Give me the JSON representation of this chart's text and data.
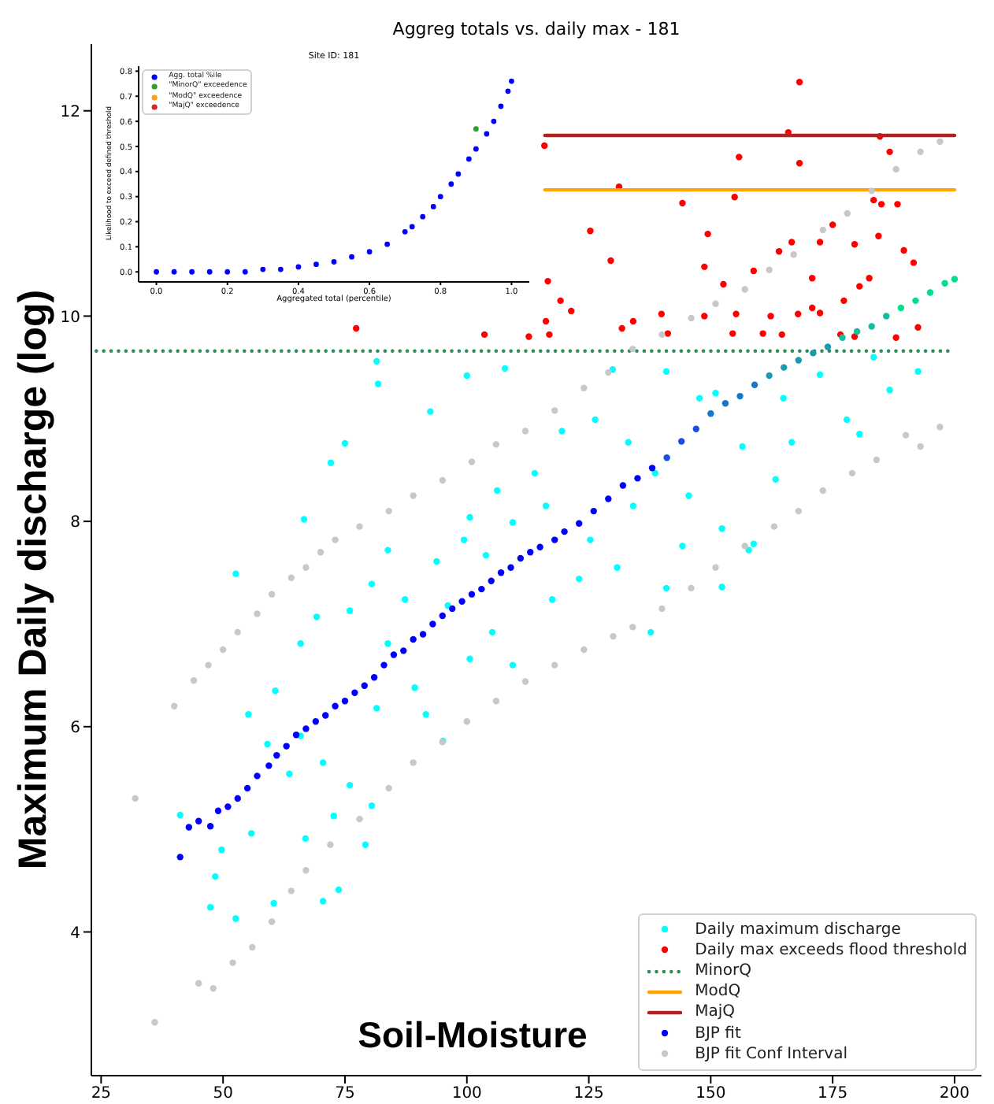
{
  "chart_data": [
    {
      "type": "scatter",
      "title": "Aggreg totals vs. daily max - 181",
      "xlabel": "Soil-Moisture",
      "ylabel": "Maximum Daily discharge (log)",
      "xlim": [
        23,
        205.5
      ],
      "ylim": [
        2.6,
        12.65
      ],
      "xticks": [
        25,
        50,
        75,
        100,
        125,
        150,
        175,
        200
      ],
      "yticks": [
        4,
        6,
        8,
        10,
        12
      ],
      "legend": "bottom right",
      "marker": "circle",
      "series": [
        {
          "name": "Daily maximum discharge",
          "color": "#00ffff",
          "x": [
            81.5,
            81.8,
            100,
            107.8,
            92.5,
            75,
            72.1,
            66.6,
            129.9,
            140.9,
            147.7,
            183.4,
            192.5,
            186.7,
            164.9,
            172.4,
            177.9,
            180.5,
            166.6,
            163.3,
            156.5,
            151,
            126.3,
            119.5,
            133.1,
            138.6,
            145.5,
            152.3,
            158.8,
            113.9,
            106.2,
            100.6,
            109.4,
            116.2,
            125.3,
            134.1,
            99.4,
            93.8,
            83.8,
            103.9,
            52.6,
            69.2,
            65.9,
            60.7,
            55.2,
            59.1,
            63.6,
            55.8,
            49.7,
            48.4,
            47.4,
            41.2,
            52.6,
            60.4,
            70.5,
            73.7,
            66.9,
            72.7,
            80.5,
            76,
            70.5,
            65.9,
            81.5,
            89.3,
            95.1,
            100.6,
            83.8,
            76,
            80.5,
            96.1,
            105.2,
            109.4,
            117.5,
            123,
            130.8,
            137.7,
            140.9,
            152.3,
            144.2,
            157.8,
            87.3,
            91.6,
            79.2
          ],
          "values": [
            9.56,
            9.34,
            9.42,
            9.49,
            9.07,
            8.76,
            8.57,
            8.02,
            9.48,
            9.46,
            9.2,
            9.6,
            9.46,
            9.28,
            9.2,
            9.43,
            8.99,
            8.85,
            8.77,
            8.41,
            8.73,
            9.25,
            8.99,
            8.88,
            8.77,
            8.47,
            8.25,
            7.93,
            7.78,
            8.47,
            8.3,
            8.04,
            7.99,
            8.15,
            7.82,
            8.15,
            7.82,
            7.61,
            7.72,
            7.67,
            7.49,
            7.07,
            6.81,
            6.35,
            6.12,
            5.83,
            5.54,
            4.96,
            4.8,
            4.54,
            4.24,
            5.14,
            4.13,
            4.28,
            4.3,
            4.41,
            4.91,
            5.13,
            5.23,
            5.43,
            5.65,
            5.91,
            6.18,
            6.38,
            5.86,
            6.66,
            6.81,
            7.13,
            7.39,
            7.18,
            6.92,
            6.6,
            7.24,
            7.44,
            7.55,
            6.92,
            7.35,
            7.36,
            7.76,
            7.72,
            7.24,
            6.12,
            4.85
          ]
        },
        {
          "name": "Daily max exceeds flood threshold",
          "color": "#ff0000",
          "x": [
            115.9,
            165.9,
            184.7,
            155.8,
            168.2,
            186.7,
            131.2,
            154.9,
            144.2,
            183.4,
            185,
            188.3,
            125.3,
            149.4,
            175,
            129.5,
            148.7,
            158.8,
            164,
            166.6,
            172.4,
            179.5,
            184.4,
            189.6,
            191.6,
            170.8,
            182.5,
            116.6,
            152.6,
            119.2,
            121.4,
            139.9,
            148.7,
            155.2,
            162.3,
            167.9,
            172.4,
            116.2,
            134.1,
            131.8,
            77.3,
            103.6,
            112.7,
            116.9,
            141.2,
            154.5,
            160.7,
            164.6,
            176.6,
            179.5,
            188,
            192.5,
            170.8,
            177.3,
            180.5,
            168.2
          ],
          "values": [
            11.66,
            11.79,
            11.75,
            11.55,
            11.49,
            11.6,
            11.26,
            11.16,
            11.1,
            11.13,
            11.09,
            11.09,
            10.83,
            10.8,
            10.89,
            10.54,
            10.48,
            10.44,
            10.63,
            10.72,
            10.72,
            10.7,
            10.78,
            10.64,
            10.52,
            10.37,
            10.37,
            10.34,
            10.31,
            10.15,
            10.05,
            10.02,
            10.0,
            10.02,
            10.0,
            10.02,
            10.03,
            9.95,
            9.95,
            9.88,
            9.88,
            9.82,
            9.8,
            9.82,
            9.83,
            9.83,
            9.83,
            9.82,
            9.82,
            9.8,
            9.79,
            9.89,
            10.08,
            10.15,
            10.29,
            12.28
          ]
        },
        {
          "name": "MinorQ",
          "type": "line",
          "line_style": "dotted",
          "marker": "none",
          "color": "#2e8b57",
          "x": [
            24,
            200
          ],
          "values": [
            9.66,
            9.66
          ]
        },
        {
          "name": "ModQ",
          "type": "line",
          "line_style": "solid",
          "marker": "none",
          "color": "#ffa500",
          "x": [
            116,
            200
          ],
          "values": [
            11.23,
            11.23
          ]
        },
        {
          "name": "MajQ",
          "type": "line",
          "line_style": "solid",
          "marker": "none",
          "color": "#b22222",
          "x": [
            116,
            200
          ],
          "values": [
            11.76,
            11.76
          ]
        },
        {
          "name": "BJP fit",
          "color": "#0000ff",
          "x": [
            41.2,
            43,
            45,
            47.4,
            49,
            51,
            53,
            55,
            57,
            59.4,
            61,
            63,
            65,
            67,
            69,
            71,
            73,
            75,
            77,
            79,
            81,
            83,
            85,
            87,
            89,
            91,
            93,
            95,
            97,
            99,
            101,
            103,
            105,
            107,
            109,
            111,
            113,
            115,
            118,
            120,
            123,
            126,
            129,
            132,
            135,
            138,
            141,
            144,
            147,
            150,
            153,
            156,
            159,
            162,
            165,
            168,
            171,
            174,
            177,
            180,
            183,
            186,
            189,
            192,
            195,
            198,
            200
          ],
          "values": [
            4.73,
            5.02,
            5.08,
            5.03,
            5.18,
            5.22,
            5.3,
            5.4,
            5.52,
            5.62,
            5.72,
            5.81,
            5.92,
            5.98,
            6.05,
            6.11,
            6.2,
            6.25,
            6.33,
            6.4,
            6.48,
            6.6,
            6.7,
            6.74,
            6.85,
            6.9,
            7.0,
            7.08,
            7.15,
            7.22,
            7.29,
            7.34,
            7.42,
            7.5,
            7.55,
            7.64,
            7.7,
            7.75,
            7.82,
            7.9,
            7.98,
            8.1,
            8.22,
            8.35,
            8.42,
            8.52,
            8.62,
            8.78,
            8.9,
            9.05,
            9.15,
            9.22,
            9.33,
            9.42,
            9.5,
            9.57,
            9.64,
            9.7,
            9.79,
            9.85,
            9.9,
            10.0,
            10.08,
            10.15,
            10.23,
            10.32,
            10.36
          ],
          "colors": [
            "#0000ff",
            "#0000ff",
            "#0000ff",
            "#0000ff",
            "#0000ff",
            "#0000ff",
            "#0000ff",
            "#0000ff",
            "#0000ff",
            "#0000ff",
            "#0000ff",
            "#0000ff",
            "#0000ff",
            "#0000ff",
            "#0000ff",
            "#0000ff",
            "#0000ff",
            "#0000ff",
            "#0000ff",
            "#0000ff",
            "#0000ff",
            "#0000ff",
            "#0000ff",
            "#0000ff",
            "#0000ff",
            "#0000ff",
            "#0000ff",
            "#0000ff",
            "#0000ff",
            "#0000ff",
            "#0000ff",
            "#0000ff",
            "#0000ff",
            "#0000ff",
            "#0000ff",
            "#0000ff",
            "#0000ff",
            "#0000ff",
            "#0000ff",
            "#0000ff",
            "#0000ff",
            "#0000ff",
            "#0000ff",
            "#0000ff",
            "#0000ff",
            "#0000ff",
            "#1a50e0",
            "#1a50e0",
            "#1a50e0",
            "#1878c8",
            "#1878c8",
            "#1878c8",
            "#1878c8",
            "#1a9ab0",
            "#1a9ab0",
            "#1a9ab0",
            "#1a9ab0",
            "#1a9ab0",
            "#10c0a0",
            "#10c0a0",
            "#10c0a0",
            "#10c0a0",
            "#00e08a",
            "#00e08a",
            "#00e08a",
            "#00e08a",
            "#00e08a"
          ]
        },
        {
          "name": "BJP fit Conf Interval",
          "color": "#c8c8c8",
          "x": [
            32,
            40,
            44,
            47,
            50,
            53,
            57,
            60,
            64,
            67,
            70,
            73,
            78,
            84,
            89,
            95,
            101,
            106,
            112,
            118,
            124,
            129,
            134,
            140,
            146,
            151,
            157,
            162,
            167,
            173,
            178,
            183,
            188,
            193,
            197,
            36,
            45,
            48,
            52,
            56,
            60,
            64,
            67,
            72,
            78,
            84,
            89,
            95,
            100,
            106,
            112,
            118,
            124,
            130,
            134,
            140,
            146,
            151,
            157,
            163,
            168,
            173,
            179,
            184,
            190,
            193,
            197
          ],
          "values": [
            5.3,
            6.2,
            6.45,
            6.6,
            6.75,
            6.92,
            7.1,
            7.29,
            7.45,
            7.55,
            7.7,
            7.82,
            7.95,
            8.1,
            8.25,
            8.4,
            8.58,
            8.75,
            8.88,
            9.08,
            9.3,
            9.45,
            9.68,
            9.82,
            9.98,
            10.12,
            10.26,
            10.45,
            10.6,
            10.84,
            11.0,
            11.22,
            11.43,
            11.6,
            11.7,
            3.12,
            3.5,
            3.45,
            3.7,
            3.85,
            4.1,
            4.4,
            4.6,
            4.85,
            5.1,
            5.4,
            5.65,
            5.85,
            6.05,
            6.25,
            6.44,
            6.6,
            6.75,
            6.88,
            6.97,
            7.15,
            7.35,
            7.55,
            7.76,
            7.95,
            8.1,
            8.3,
            8.47,
            8.6,
            8.84,
            8.73,
            8.92
          ]
        }
      ]
    },
    {
      "type": "scatter",
      "title": "Site ID: 181",
      "xlabel": "Aggregated total (percentile)",
      "ylabel": "Likelihood to exceed defined threshold",
      "xlim": [
        -0.05,
        1.05
      ],
      "ylim": [
        -0.04,
        0.82
      ],
      "xticks": [
        {
          "value": 0,
          "label": "0.0"
        },
        0.2,
        0.4,
        0.6,
        0.8,
        {
          "value": 1,
          "label": "1.0"
        }
      ],
      "yticks": [
        {
          "value": 0,
          "label": "0.0"
        },
        0.1,
        0.2,
        0.3,
        0.4,
        0.5,
        0.6,
        0.7,
        0.8
      ],
      "legend": "top left",
      "marker": "circle",
      "series": [
        {
          "name": "Agg. total %ile",
          "color": "#0000ff",
          "x": [
            0,
            0.05,
            0.1,
            0.15,
            0.2,
            0.25,
            0.3,
            0.35,
            0.4,
            0.45,
            0.5,
            0.55,
            0.6,
            0.65,
            0.7,
            0.72,
            0.75,
            0.78,
            0.8,
            0.83,
            0.85,
            0.88,
            0.9,
            0.93,
            0.95,
            0.97,
            0.99,
            1.0
          ],
          "values": [
            0,
            0,
            0,
            0,
            0,
            0,
            0.01,
            0.01,
            0.02,
            0.03,
            0.04,
            0.06,
            0.08,
            0.11,
            0.16,
            0.18,
            0.22,
            0.26,
            0.3,
            0.35,
            0.39,
            0.45,
            0.49,
            0.55,
            0.6,
            0.66,
            0.72,
            0.76
          ]
        },
        {
          "name": "\"MinorQ\" exceedence",
          "color": "#2ca02c",
          "x": [
            0.9
          ],
          "values": [
            0.57
          ]
        },
        {
          "name": "\"ModQ\" exceedence",
          "color": "#ff9f1c"
        },
        {
          "name": "\"MajQ\" exceedence",
          "color": "#d62728"
        }
      ]
    }
  ]
}
